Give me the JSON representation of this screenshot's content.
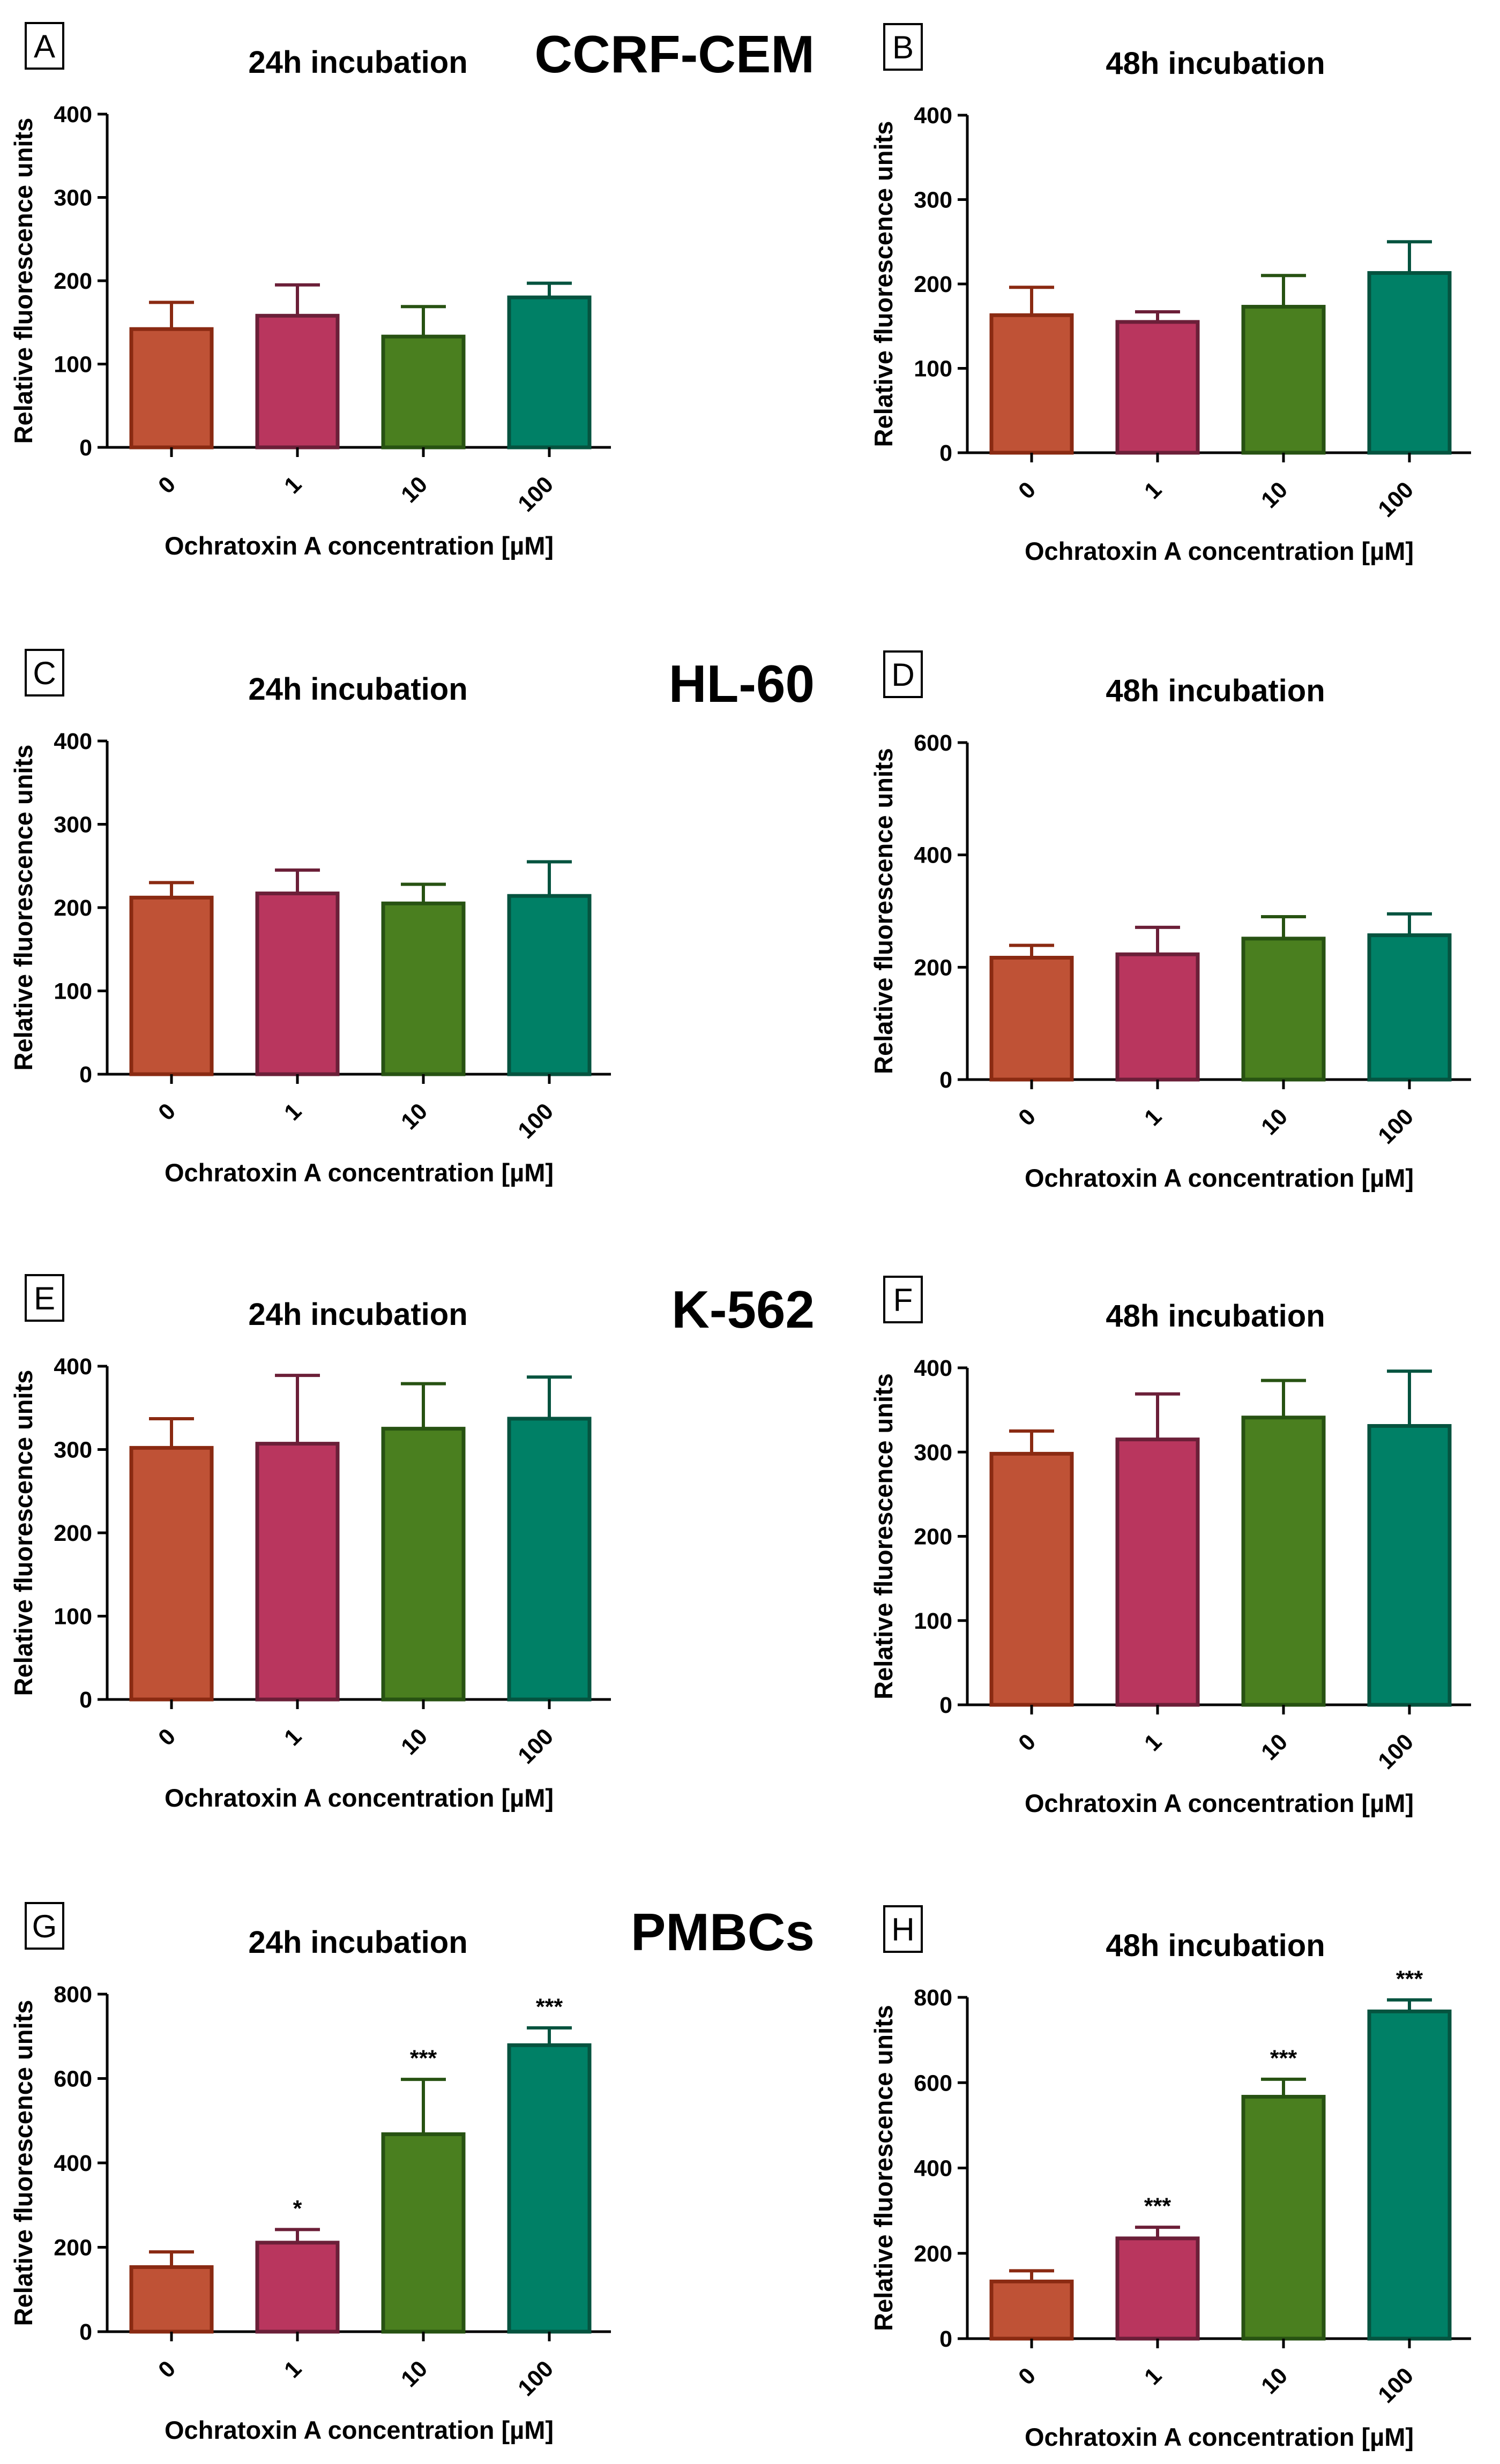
{
  "figure": {
    "colors": {
      "fills": [
        "#bf5236",
        "#b9365e",
        "#4a7f1f",
        "#008066"
      ],
      "strokes": [
        "#8a2a12",
        "#6b1f38",
        "#275212",
        "#05533f"
      ]
    },
    "cell_lines": [
      "CCRF-CEM",
      "HL-60",
      "K-562",
      "PMBCs"
    ],
    "incubations": [
      "24h incubation",
      "48h incubation"
    ]
  },
  "chart_data": [
    {
      "panel": "A",
      "type": "bar",
      "title": "24h incubation",
      "xlabel": "Ochratoxin A concentration [µM]",
      "ylabel": "Relative fluorescence units",
      "categories": [
        "0",
        "1",
        "10",
        "100"
      ],
      "values": [
        142,
        158,
        133,
        180
      ],
      "errors": [
        32,
        37,
        36,
        17
      ],
      "significance": [
        "",
        "",
        "",
        ""
      ],
      "ylim": [
        0,
        400
      ],
      "yticks": [
        "0",
        "100",
        "200",
        "300",
        "400"
      ]
    },
    {
      "panel": "B",
      "type": "bar",
      "title": "48h incubation",
      "xlabel": "Ochratoxin A concentration [µM]",
      "ylabel": "Relative fluorescence units",
      "categories": [
        "0",
        "1",
        "10",
        "100"
      ],
      "values": [
        163,
        155,
        173,
        213
      ],
      "errors": [
        33,
        12,
        37,
        37
      ],
      "significance": [
        "",
        "",
        "",
        ""
      ],
      "ylim": [
        0,
        400
      ],
      "yticks": [
        "0",
        "100",
        "200",
        "300",
        "400"
      ]
    },
    {
      "panel": "C",
      "type": "bar",
      "title": "24h incubation",
      "xlabel": "Ochratoxin A concentration [µM]",
      "ylabel": "Relative fluorescence units",
      "categories": [
        "0",
        "1",
        "10",
        "100"
      ],
      "values": [
        212,
        217,
        205,
        214
      ],
      "errors": [
        18,
        28,
        23,
        41
      ],
      "significance": [
        "",
        "",
        "",
        ""
      ],
      "ylim": [
        0,
        400
      ],
      "yticks": [
        "0",
        "100",
        "200",
        "300",
        "400"
      ]
    },
    {
      "panel": "D",
      "type": "bar",
      "title": "48h incubation",
      "xlabel": "Ochratoxin A concentration [µM]",
      "ylabel": "Relative fluorescence units",
      "categories": [
        "0",
        "1",
        "10",
        "100"
      ],
      "values": [
        217,
        223,
        251,
        257
      ],
      "errors": [
        22,
        48,
        39,
        38
      ],
      "significance": [
        "",
        "",
        "",
        ""
      ],
      "ylim": [
        0,
        600
      ],
      "yticks": [
        "0",
        "200",
        "400",
        "600"
      ]
    },
    {
      "panel": "E",
      "type": "bar",
      "title": "24h incubation",
      "xlabel": "Ochratoxin A concentration [µM]",
      "ylabel": "Relative fluorescence units",
      "categories": [
        "0",
        "1",
        "10",
        "100"
      ],
      "values": [
        302,
        307,
        325,
        337
      ],
      "errors": [
        35,
        82,
        54,
        50
      ],
      "significance": [
        "",
        "",
        "",
        ""
      ],
      "ylim": [
        0,
        400
      ],
      "yticks": [
        "0",
        "100",
        "200",
        "300",
        "400"
      ]
    },
    {
      "panel": "F",
      "type": "bar",
      "title": "48h incubation",
      "xlabel": "Ochratoxin A concentration [µM]",
      "ylabel": "Relative fluorescence units",
      "categories": [
        "0",
        "1",
        "10",
        "100"
      ],
      "values": [
        298,
        315,
        341,
        331
      ],
      "errors": [
        27,
        54,
        44,
        65
      ],
      "significance": [
        "",
        "",
        "",
        ""
      ],
      "ylim": [
        0,
        400
      ],
      "yticks": [
        "0",
        "100",
        "200",
        "300",
        "400"
      ]
    },
    {
      "panel": "G",
      "type": "bar",
      "title": "24h incubation",
      "xlabel": "Ochratoxin A concentration [µM]",
      "ylabel": "Relative fluorescence units",
      "categories": [
        "0",
        "1",
        "10",
        "100"
      ],
      "values": [
        153,
        211,
        468,
        679
      ],
      "errors": [
        36,
        31,
        130,
        41
      ],
      "significance": [
        "",
        "*",
        "***",
        "***"
      ],
      "ylim": [
        0,
        800
      ],
      "yticks": [
        "0",
        "200",
        "400",
        "600",
        "800"
      ]
    },
    {
      "panel": "H",
      "type": "bar",
      "title": "48h incubation",
      "xlabel": "Ochratoxin A concentration [µM]",
      "ylabel": "Relative fluorescence units",
      "categories": [
        "0",
        "1",
        "10",
        "100"
      ],
      "values": [
        134,
        235,
        567,
        767
      ],
      "errors": [
        25,
        26,
        41,
        27
      ],
      "significance": [
        "",
        "***",
        "***",
        "***"
      ],
      "ylim": [
        0,
        800
      ],
      "yticks": [
        "0",
        "200",
        "400",
        "600",
        "800"
      ]
    }
  ]
}
